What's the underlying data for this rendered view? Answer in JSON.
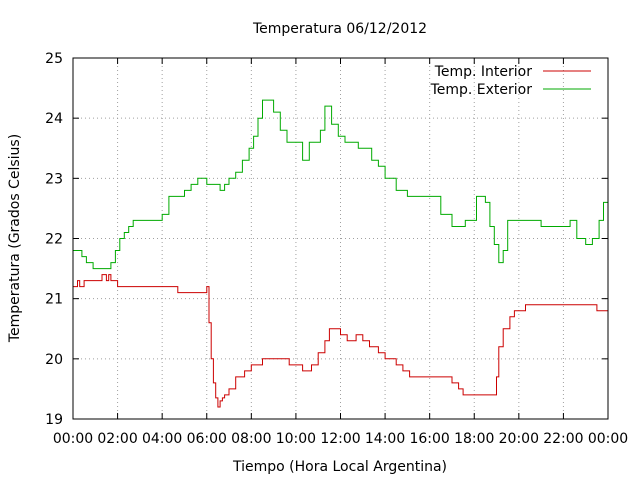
{
  "chart_data": {
    "type": "line",
    "title": "Temperatura 06/12/2012",
    "xlabel": "Tiempo (Hora Local Argentina)",
    "ylabel": "Temperatura (Grados Celsius)",
    "xlim": [
      0,
      24
    ],
    "ylim": [
      19,
      25
    ],
    "x_ticks": [
      "00:00",
      "02:00",
      "04:00",
      "06:00",
      "08:00",
      "10:00",
      "12:00",
      "14:00",
      "16:00",
      "18:00",
      "20:00",
      "22:00",
      "00:00"
    ],
    "y_ticks": [
      "19",
      "20",
      "21",
      "22",
      "23",
      "24",
      "25"
    ],
    "grid": true,
    "legend_position": "top-right",
    "series": [
      {
        "name": "Temp. Interior",
        "color": "#cc0000",
        "x": [
          0,
          0.2,
          0.3,
          0.5,
          0.7,
          1.3,
          1.5,
          1.6,
          1.7,
          2.0,
          2.2,
          4.5,
          4.7,
          5.5,
          6.0,
          6.1,
          6.2,
          6.3,
          6.4,
          6.5,
          6.6,
          6.7,
          6.8,
          7.0,
          7.3,
          7.7,
          8.0,
          8.5,
          9.0,
          9.5,
          9.7,
          10.0,
          10.3,
          10.7,
          11.0,
          11.3,
          11.5,
          11.7,
          12.0,
          12.3,
          12.7,
          13.0,
          13.3,
          13.7,
          14.0,
          14.5,
          14.8,
          15.1,
          15.5,
          16.0,
          17.0,
          17.3,
          17.5,
          18.0,
          18.5,
          18.9,
          19.0,
          19.1,
          19.3,
          19.6,
          19.8,
          20.1,
          20.3,
          21.0,
          22.0,
          23.3,
          23.5,
          23.7,
          24.0
        ],
        "values": [
          21.2,
          21.3,
          21.2,
          21.3,
          21.3,
          21.4,
          21.3,
          21.4,
          21.3,
          21.2,
          21.2,
          21.2,
          21.1,
          21.1,
          21.2,
          20.6,
          20.0,
          19.6,
          19.35,
          19.2,
          19.3,
          19.35,
          19.4,
          19.5,
          19.7,
          19.8,
          19.9,
          20.0,
          20.0,
          20.0,
          19.9,
          19.9,
          19.8,
          19.9,
          20.1,
          20.3,
          20.5,
          20.5,
          20.4,
          20.3,
          20.4,
          20.3,
          20.2,
          20.1,
          20.0,
          19.9,
          19.8,
          19.7,
          19.7,
          19.7,
          19.6,
          19.5,
          19.4,
          19.4,
          19.4,
          19.4,
          19.7,
          20.2,
          20.5,
          20.7,
          20.8,
          20.8,
          20.9,
          20.9,
          20.9,
          20.9,
          20.8,
          20.8,
          20.8
        ]
      },
      {
        "name": "Temp. Exterior",
        "color": "#00aa00",
        "x": [
          0,
          0.4,
          0.6,
          0.9,
          1.1,
          1.5,
          1.7,
          1.9,
          2.1,
          2.3,
          2.5,
          2.7,
          2.9,
          3.2,
          3.5,
          4.0,
          4.3,
          4.7,
          5.0,
          5.3,
          5.6,
          6.0,
          6.4,
          6.6,
          6.8,
          7.0,
          7.3,
          7.6,
          7.9,
          8.1,
          8.3,
          8.5,
          8.8,
          9.0,
          9.3,
          9.6,
          10.0,
          10.3,
          10.6,
          10.9,
          11.1,
          11.3,
          11.6,
          11.9,
          12.2,
          12.5,
          12.8,
          13.1,
          13.4,
          13.7,
          14.0,
          14.5,
          15.0,
          15.5,
          16.0,
          16.5,
          17.0,
          17.3,
          17.6,
          17.9,
          18.1,
          18.3,
          18.5,
          18.7,
          18.9,
          19.1,
          19.3,
          19.5,
          19.7,
          20.0,
          20.3,
          20.7,
          21.0,
          21.5,
          22.0,
          22.3,
          22.6,
          23.0,
          23.3,
          23.6,
          23.8,
          24.0
        ],
        "values": [
          21.8,
          21.7,
          21.6,
          21.5,
          21.5,
          21.5,
          21.6,
          21.8,
          22.0,
          22.1,
          22.2,
          22.3,
          22.3,
          22.3,
          22.3,
          22.4,
          22.7,
          22.7,
          22.8,
          22.9,
          23.0,
          22.9,
          22.9,
          22.8,
          22.9,
          23.0,
          23.1,
          23.3,
          23.5,
          23.7,
          24.0,
          24.3,
          24.3,
          24.1,
          23.8,
          23.6,
          23.6,
          23.3,
          23.6,
          23.6,
          23.8,
          24.2,
          23.9,
          23.7,
          23.6,
          23.6,
          23.5,
          23.5,
          23.3,
          23.2,
          23.0,
          22.8,
          22.7,
          22.7,
          22.7,
          22.4,
          22.2,
          22.2,
          22.3,
          22.3,
          22.7,
          22.7,
          22.6,
          22.2,
          21.9,
          21.6,
          21.8,
          22.3,
          22.3,
          22.3,
          22.3,
          22.3,
          22.2,
          22.2,
          22.2,
          22.3,
          22.0,
          21.9,
          22.0,
          22.3,
          22.6,
          22.8
        ]
      }
    ]
  }
}
